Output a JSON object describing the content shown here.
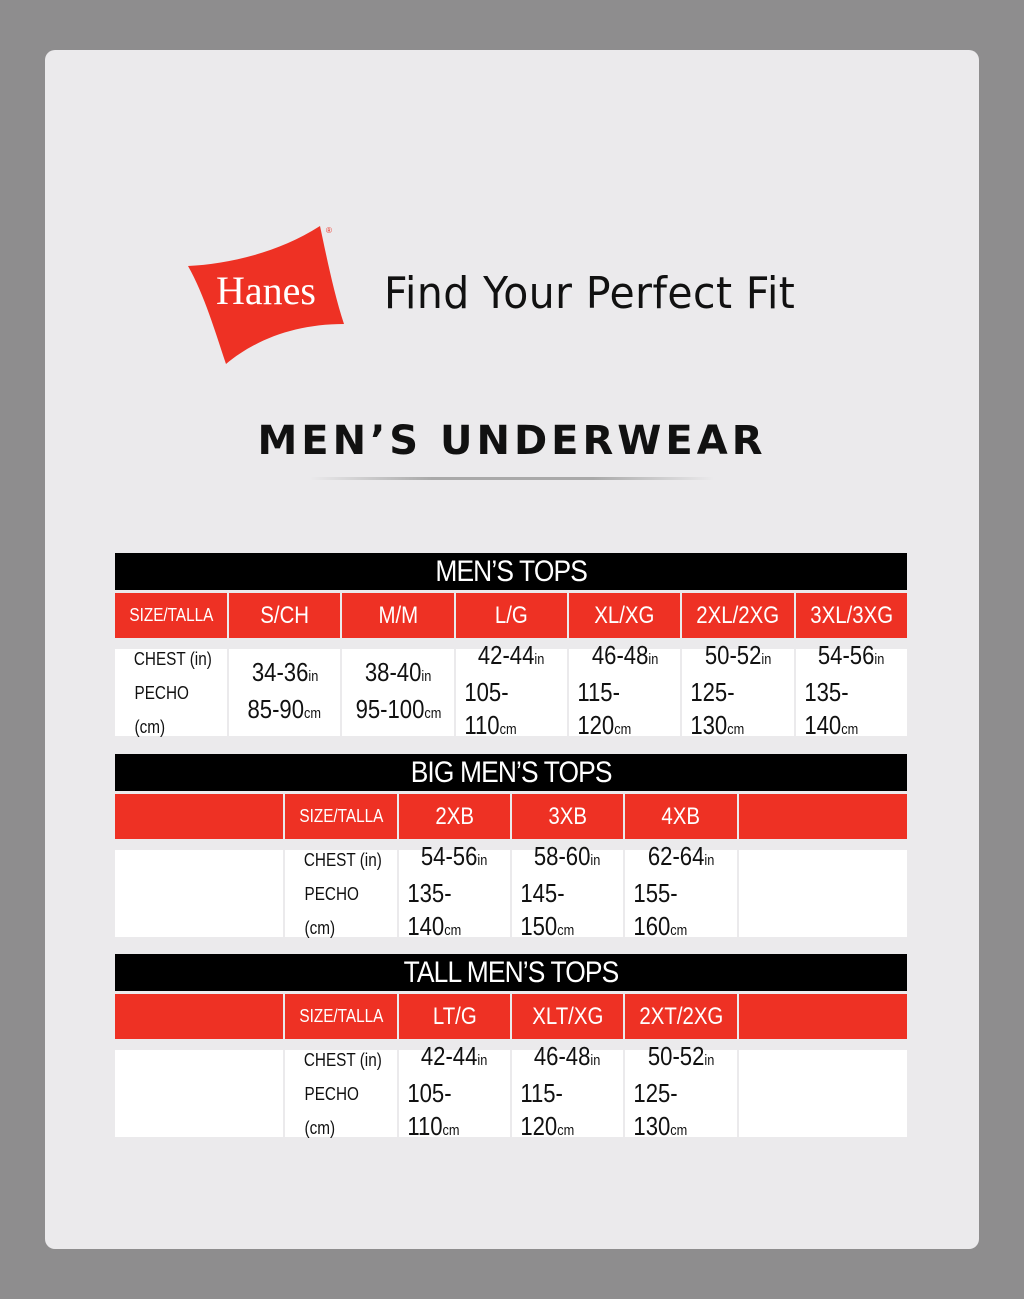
{
  "logo": {
    "text": "Hanes",
    "color": "#ee3124"
  },
  "tagline": "Find Your Perfect Fit",
  "heading": "MEN’S UNDERWEAR",
  "colors": {
    "red": "#ee3124",
    "black": "#000000",
    "background": "#ebeaec"
  },
  "row_labels": {
    "size": "SIZE/TALLA",
    "chest": "CHEST (in)",
    "pecho": "PECHO (cm)"
  },
  "units": {
    "in": "in",
    "cm": "cm"
  },
  "tables": [
    {
      "title": "MEN’S TOPS",
      "sizes": [
        {
          "size": "S/CH",
          "in": "34-36",
          "cm": "85-90"
        },
        {
          "size": "M/M",
          "in": "38-40",
          "cm": "95-100"
        },
        {
          "size": "L/G",
          "in": "42-44",
          "cm": "105-110"
        },
        {
          "size": "XL/XG",
          "in": "46-48",
          "cm": "115-120"
        },
        {
          "size": "2XL/2XG",
          "in": "50-52",
          "cm": "125-130"
        },
        {
          "size": "3XL/3XG",
          "in": "54-56",
          "cm": "135-140"
        }
      ]
    },
    {
      "title": "BIG MEN’S TOPS",
      "sizes": [
        {
          "size": "2XB",
          "in": "54-56",
          "cm": "135-140"
        },
        {
          "size": "3XB",
          "in": "58-60",
          "cm": "145-150"
        },
        {
          "size": "4XB",
          "in": "62-64",
          "cm": "155-160"
        }
      ]
    },
    {
      "title": "TALL MEN’S TOPS",
      "sizes": [
        {
          "size": "LT/G",
          "in": "42-44",
          "cm": "105-110"
        },
        {
          "size": "XLT/XG",
          "in": "46-48",
          "cm": "115-120"
        },
        {
          "size": "2XT/2XG",
          "in": "50-52",
          "cm": "125-130"
        }
      ]
    }
  ]
}
